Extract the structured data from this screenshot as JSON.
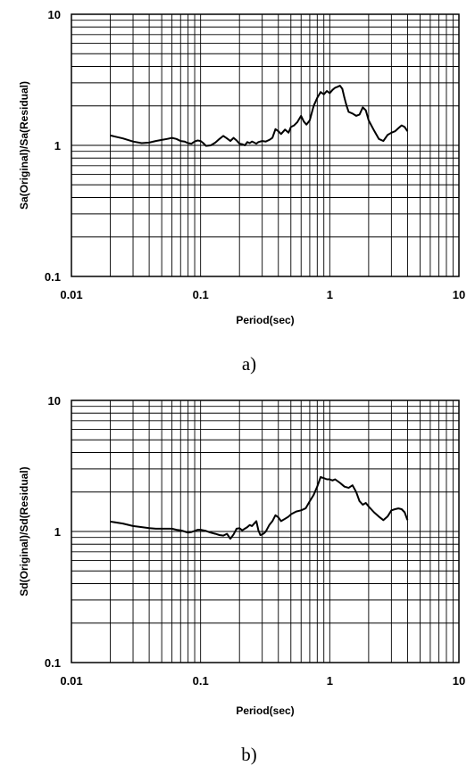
{
  "chart_data": [
    {
      "type": "line",
      "caption": "a)",
      "xlabel": "Period(sec)",
      "ylabel": "Sa(Original)/Sa(Residual)",
      "x_scale": "log",
      "y_scale": "log",
      "xlim": [
        0.01,
        10
      ],
      "ylim": [
        0.1,
        10
      ],
      "x_tick_labels": [
        "0.01",
        "0.1",
        "1",
        "10"
      ],
      "y_tick_labels": [
        "0.1",
        "1",
        "10"
      ],
      "grid": true,
      "series": [
        {
          "x": [
            0.02,
            0.025,
            0.03,
            0.035,
            0.04,
            0.045,
            0.05,
            0.055,
            0.06,
            0.065,
            0.07,
            0.075,
            0.08,
            0.085,
            0.09,
            0.095,
            0.1,
            0.105,
            0.11,
            0.12,
            0.13,
            0.14,
            0.15,
            0.16,
            0.17,
            0.18,
            0.19,
            0.2,
            0.21,
            0.22,
            0.23,
            0.24,
            0.25,
            0.26,
            0.27,
            0.28,
            0.3,
            0.32,
            0.34,
            0.36,
            0.38,
            0.4,
            0.42,
            0.45,
            0.48,
            0.5,
            0.53,
            0.56,
            0.6,
            0.63,
            0.66,
            0.7,
            0.75,
            0.8,
            0.85,
            0.9,
            0.95,
            1.0,
            1.05,
            1.1,
            1.15,
            1.2,
            1.25,
            1.3,
            1.35,
            1.4,
            1.5,
            1.6,
            1.7,
            1.8,
            1.9,
            2.0,
            2.2,
            2.4,
            2.6,
            2.8,
            3.0,
            3.2,
            3.4,
            3.6,
            3.8,
            4.0
          ],
          "y": [
            1.19,
            1.13,
            1.07,
            1.04,
            1.05,
            1.08,
            1.1,
            1.12,
            1.14,
            1.12,
            1.08,
            1.07,
            1.04,
            1.03,
            1.07,
            1.09,
            1.08,
            1.04,
            0.99,
            1.0,
            1.05,
            1.12,
            1.18,
            1.13,
            1.08,
            1.14,
            1.09,
            1.03,
            1.02,
            1.0,
            1.06,
            1.04,
            1.07,
            1.05,
            1.03,
            1.06,
            1.08,
            1.07,
            1.1,
            1.14,
            1.33,
            1.28,
            1.22,
            1.32,
            1.25,
            1.38,
            1.42,
            1.5,
            1.68,
            1.52,
            1.44,
            1.55,
            2.0,
            2.3,
            2.55,
            2.45,
            2.6,
            2.5,
            2.65,
            2.75,
            2.8,
            2.85,
            2.7,
            2.3,
            2.0,
            1.8,
            1.75,
            1.68,
            1.72,
            1.95,
            1.85,
            1.55,
            1.3,
            1.12,
            1.08,
            1.2,
            1.25,
            1.28,
            1.35,
            1.42,
            1.38,
            1.28
          ]
        }
      ]
    },
    {
      "type": "line",
      "caption": "b)",
      "xlabel": "Period(sec)",
      "ylabel": "Sd(Original)/Sd(Residual)",
      "x_scale": "log",
      "y_scale": "log",
      "xlim": [
        0.01,
        10
      ],
      "ylim": [
        0.1,
        10
      ],
      "x_tick_labels": [
        "0.01",
        "0.1",
        "1",
        "10"
      ],
      "y_tick_labels": [
        "0.1",
        "1",
        "10"
      ],
      "grid": true,
      "series": [
        {
          "x": [
            0.02,
            0.025,
            0.03,
            0.035,
            0.04,
            0.045,
            0.05,
            0.055,
            0.06,
            0.065,
            0.07,
            0.075,
            0.08,
            0.085,
            0.09,
            0.095,
            0.1,
            0.105,
            0.11,
            0.12,
            0.13,
            0.14,
            0.15,
            0.16,
            0.17,
            0.18,
            0.19,
            0.2,
            0.21,
            0.22,
            0.23,
            0.24,
            0.25,
            0.26,
            0.27,
            0.28,
            0.29,
            0.3,
            0.31,
            0.32,
            0.34,
            0.36,
            0.38,
            0.4,
            0.42,
            0.45,
            0.48,
            0.5,
            0.55,
            0.6,
            0.65,
            0.7,
            0.75,
            0.8,
            0.85,
            0.9,
            0.95,
            1.0,
            1.05,
            1.1,
            1.2,
            1.3,
            1.4,
            1.5,
            1.6,
            1.7,
            1.8,
            1.9,
            2.0,
            2.2,
            2.4,
            2.6,
            2.8,
            3.0,
            3.2,
            3.4,
            3.6,
            3.8,
            4.0
          ],
          "y": [
            1.19,
            1.15,
            1.1,
            1.08,
            1.06,
            1.05,
            1.05,
            1.05,
            1.05,
            1.03,
            1.02,
            1.0,
            0.98,
            0.99,
            1.01,
            1.03,
            1.03,
            1.02,
            1.01,
            0.98,
            0.96,
            0.94,
            0.93,
            0.96,
            0.88,
            0.95,
            1.05,
            1.06,
            1.02,
            1.05,
            1.08,
            1.12,
            1.1,
            1.15,
            1.2,
            1.02,
            0.94,
            0.95,
            0.97,
            1.0,
            1.12,
            1.2,
            1.33,
            1.28,
            1.2,
            1.25,
            1.3,
            1.35,
            1.42,
            1.45,
            1.5,
            1.7,
            1.9,
            2.2,
            2.6,
            2.55,
            2.5,
            2.5,
            2.45,
            2.5,
            2.35,
            2.2,
            2.15,
            2.25,
            2.0,
            1.7,
            1.6,
            1.65,
            1.55,
            1.4,
            1.3,
            1.22,
            1.3,
            1.45,
            1.48,
            1.5,
            1.48,
            1.4,
            1.22
          ]
        }
      ]
    }
  ]
}
